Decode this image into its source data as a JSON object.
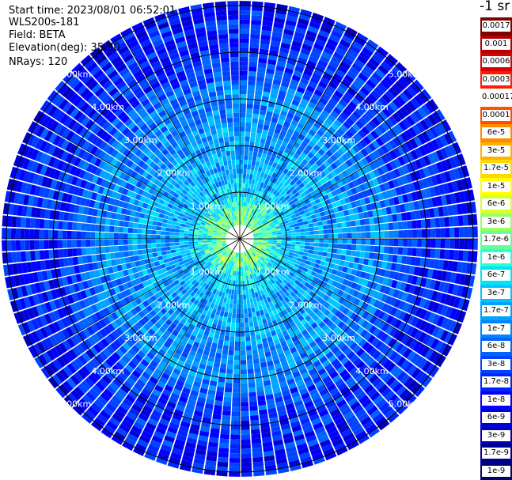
{
  "header": {
    "start_time": "Start time: 2023/08/01 06:52:01",
    "instrument": "WLS200s-181",
    "field": "Field: BETA",
    "elevation": "Elevation(deg): 35.30",
    "nrays": "NRays: 120"
  },
  "colorbar": {
    "unit": "-1 sr",
    "labels": [
      "0.0017",
      "0.001",
      "0.0006",
      "0.0003",
      "0.00017",
      "0.0001",
      "6e-5",
      "3e-5",
      "1.7e-5",
      "1e-5",
      "6e-6",
      "3e-6",
      "1.7e-6",
      "1e-6",
      "6e-7",
      "3e-7",
      "1.7e-7",
      "1e-7",
      "6e-8",
      "3e-8",
      "1.7e-8",
      "1e-8",
      "6e-9",
      "3e-9",
      "1.7e-9",
      "1e-9"
    ],
    "colors": [
      "#800000",
      "#b00000",
      "#d80000",
      "#ff1a00",
      "#ffffff",
      "#ff5000",
      "#ff8c00",
      "#ffb000",
      "#ffd800",
      "#ffff00",
      "#d4ff2a",
      "#9aff64",
      "#64ff9a",
      "#2affd4",
      "#00e4f8",
      "#00c4ff",
      "#00a4ff",
      "#0084ff",
      "#0064ff",
      "#0044ff",
      "#0024ff",
      "#0000ff",
      "#0000d8",
      "#0000b4",
      "#000090",
      "#000070"
    ]
  },
  "chart_data": {
    "type": "heatmap",
    "projection": "polar PPI scan",
    "field": "BETA",
    "instrument": "WLS200s-181",
    "start_time": "2023/08/01 06:52:01",
    "elevation_deg": 35.3,
    "n_rays": 120,
    "range_rings_km": [
      1,
      2,
      3,
      4,
      5
    ],
    "range_labels": [
      "1.00km",
      "2.00km",
      "3.00km",
      "4.00km",
      "5.00km"
    ],
    "max_range_km": 5.1,
    "spokes_deg": [
      0,
      30,
      60,
      90,
      120,
      150,
      180,
      210,
      240,
      270,
      300,
      330
    ],
    "label_azimuths_deg": [
      45,
      135,
      225,
      315
    ],
    "colorscale": "log",
    "colorbar_range": [
      1e-09,
      0.0017
    ],
    "beta_profile": [
      {
        "range_km": 0.5,
        "beta": 1.7e-06
      },
      {
        "range_km": 1.0,
        "beta": 3e-07
      },
      {
        "range_km": 1.5,
        "beta": 1.7e-07
      },
      {
        "range_km": 2.0,
        "beta": 1.7e-07
      },
      {
        "range_km": 2.5,
        "beta": 1e-07
      },
      {
        "range_km": 3.0,
        "beta": 1e-07
      },
      {
        "range_km": 3.5,
        "beta": 3e-08
      },
      {
        "range_km": 4.0,
        "beta": 1.7e-08
      },
      {
        "range_km": 4.5,
        "beta": 1.7e-08
      },
      {
        "range_km": 5.0,
        "beta": 1e-08
      }
    ]
  }
}
